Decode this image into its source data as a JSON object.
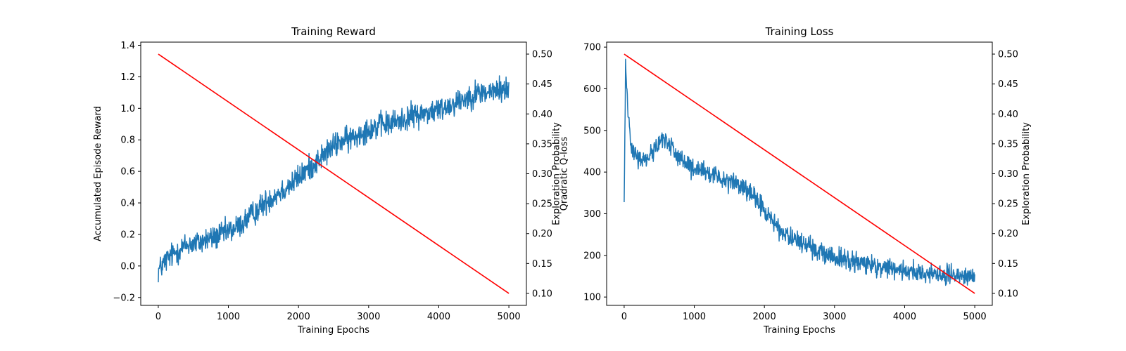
{
  "chart_data": [
    {
      "type": "line",
      "title": "Training Reward",
      "xlabel": "Training Epochs",
      "ylabel": "Accumulated Episode Reward",
      "y2label_lines": [
        "Exploration Probability",
        "Qradratic Q-loss"
      ],
      "xlim": [
        -250,
        5250
      ],
      "ylim": [
        -0.25,
        1.42
      ],
      "y2lim": [
        0.08,
        0.52
      ],
      "xticks": [
        0,
        1000,
        2000,
        3000,
        4000,
        5000
      ],
      "yticks": [
        -0.2,
        0.0,
        0.2,
        0.4,
        0.6,
        0.8,
        1.0,
        1.2,
        1.4
      ],
      "y2ticks": [
        0.1,
        0.15,
        0.2,
        0.25,
        0.3,
        0.35,
        0.4,
        0.45,
        0.5
      ],
      "grid": false,
      "series": [
        {
          "axis": "left",
          "color": "#1f77b4",
          "x": [
            0,
            50,
            100,
            150,
            200,
            250,
            300,
            350,
            400,
            450,
            500,
            600,
            700,
            800,
            900,
            1000,
            1100,
            1200,
            1300,
            1400,
            1500,
            1600,
            1700,
            1800,
            1900,
            2000,
            2100,
            2200,
            2300,
            2400,
            2500,
            2600,
            2700,
            2800,
            2900,
            3000,
            3100,
            3200,
            3300,
            3400,
            3500,
            3600,
            3700,
            3800,
            3900,
            4000,
            4100,
            4200,
            4300,
            4400,
            4500,
            4600,
            4700,
            4800,
            4900,
            5000
          ],
          "y": [
            -0.03,
            0.0,
            0.03,
            0.05,
            0.07,
            0.09,
            0.1,
            0.12,
            0.13,
            0.14,
            0.14,
            0.15,
            0.17,
            0.18,
            0.2,
            0.22,
            0.24,
            0.27,
            0.31,
            0.35,
            0.39,
            0.43,
            0.46,
            0.49,
            0.52,
            0.56,
            0.6,
            0.64,
            0.68,
            0.72,
            0.76,
            0.79,
            0.8,
            0.82,
            0.85,
            0.87,
            0.88,
            0.9,
            0.9,
            0.92,
            0.93,
            0.95,
            0.96,
            0.97,
            0.98,
            0.99,
            1.01,
            1.03,
            1.05,
            1.07,
            1.09,
            1.1,
            1.1,
            1.11,
            1.12,
            1.12
          ],
          "noise": 0.075,
          "samples": 1000
        },
        {
          "axis": "right",
          "color": "#ff0000",
          "x": [
            0,
            5000
          ],
          "y": [
            0.5,
            0.1
          ]
        }
      ]
    },
    {
      "type": "line",
      "title": "Training Loss",
      "xlabel": "Training Epochs",
      "ylabel": "",
      "y2label_lines": [
        "Exploration Probability"
      ],
      "xlim": [
        -250,
        5250
      ],
      "ylim": [
        80,
        712
      ],
      "y2lim": [
        0.08,
        0.52
      ],
      "xticks": [
        0,
        1000,
        2000,
        3000,
        4000,
        5000
      ],
      "yticks": [
        100,
        200,
        300,
        400,
        500,
        600,
        700
      ],
      "y2ticks": [
        0.1,
        0.15,
        0.2,
        0.25,
        0.3,
        0.35,
        0.4,
        0.45,
        0.5
      ],
      "grid": false,
      "series": [
        {
          "axis": "left",
          "color": "#1f77b4",
          "x": [
            0,
            20,
            50,
            100,
            150,
            200,
            300,
            400,
            500,
            600,
            700,
            800,
            900,
            1000,
            1100,
            1200,
            1300,
            1400,
            1500,
            1600,
            1700,
            1800,
            1900,
            2000,
            2100,
            2200,
            2300,
            2400,
            2500,
            2600,
            2700,
            2800,
            2900,
            3000,
            3200,
            3400,
            3600,
            3800,
            4000,
            4200,
            4400,
            4600,
            4800,
            5000
          ],
          "y": [
            320,
            660,
            560,
            470,
            440,
            430,
            430,
            450,
            470,
            480,
            455,
            430,
            415,
            405,
            400,
            395,
            390,
            385,
            380,
            375,
            360,
            345,
            330,
            310,
            285,
            265,
            250,
            240,
            232,
            225,
            215,
            207,
            200,
            195,
            188,
            180,
            175,
            168,
            163,
            160,
            157,
            153,
            150,
            145
          ],
          "noise": 22,
          "samples": 1000
        },
        {
          "axis": "right",
          "color": "#ff0000",
          "x": [
            0,
            5000
          ],
          "y": [
            0.5,
            0.1
          ]
        }
      ]
    }
  ]
}
